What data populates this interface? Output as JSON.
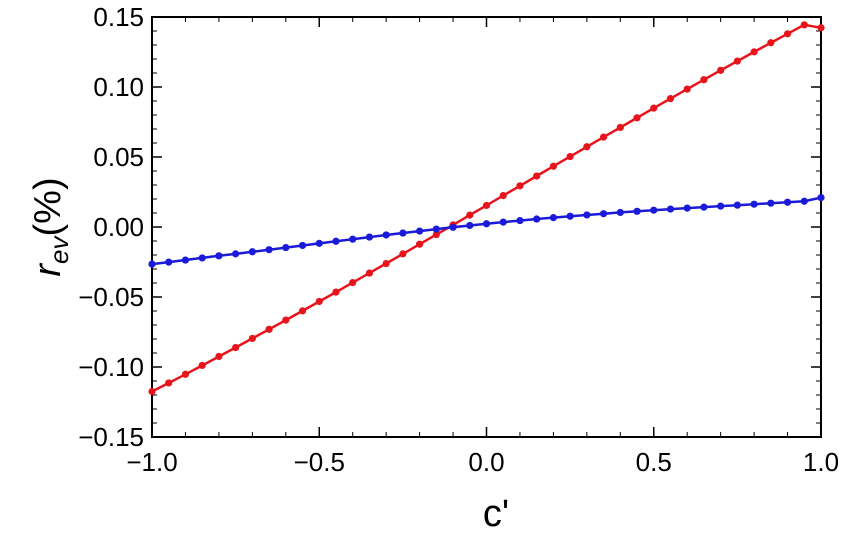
{
  "chart_data": {
    "type": "line",
    "title": "",
    "xlabel": "c'",
    "ylabel_main": "r",
    "ylabel_sub": "ev",
    "ylabel_suffix": "(%)",
    "xlim": [
      -1.0,
      1.0
    ],
    "ylim": [
      -0.15,
      0.15
    ],
    "grid": false,
    "legend": "none",
    "x_ticks": [
      {
        "value": -1.0,
        "label": "−1.0"
      },
      {
        "value": -0.5,
        "label": "−0.5"
      },
      {
        "value": 0.0,
        "label": "0.0"
      },
      {
        "value": 0.5,
        "label": "0.5"
      },
      {
        "value": 1.0,
        "label": "1.0"
      }
    ],
    "y_ticks": [
      {
        "value": 0.15,
        "label": "0.15"
      },
      {
        "value": 0.1,
        "label": "0.10"
      },
      {
        "value": 0.05,
        "label": "0.05"
      },
      {
        "value": 0.0,
        "label": "0.00"
      },
      {
        "value": -0.05,
        "label": "−0.05"
      },
      {
        "value": -0.1,
        "label": "−0.10"
      },
      {
        "value": -0.15,
        "label": "−0.15"
      }
    ],
    "x": [
      -1.0,
      -0.95,
      -0.9,
      -0.85,
      -0.8,
      -0.75,
      -0.7,
      -0.65,
      -0.6,
      -0.55,
      -0.5,
      -0.45,
      -0.4,
      -0.35,
      -0.3,
      -0.25,
      -0.2,
      -0.15,
      -0.1,
      -0.05,
      0.0,
      0.05,
      0.1,
      0.15,
      0.2,
      0.25,
      0.3,
      0.35,
      0.4,
      0.45,
      0.5,
      0.55,
      0.6,
      0.65,
      0.7,
      0.75,
      0.8,
      0.85,
      0.9,
      0.95,
      1.0
    ],
    "series": [
      {
        "color": "#e8141c",
        "values": [
          -0.1175,
          -0.1114,
          -0.1052,
          -0.0989,
          -0.0925,
          -0.0861,
          -0.0796,
          -0.0731,
          -0.0665,
          -0.0599,
          -0.0532,
          -0.0465,
          -0.0397,
          -0.0329,
          -0.0261,
          -0.0192,
          -0.0123,
          -0.0054,
          0.0015,
          0.0085,
          0.0154,
          0.0224,
          0.0294,
          0.0364,
          0.0434,
          0.0503,
          0.0573,
          0.0642,
          0.0711,
          0.078,
          0.0849,
          0.0917,
          0.0985,
          0.1052,
          0.1119,
          0.1185,
          0.1251,
          0.1316,
          0.138,
          0.1444,
          0.1423
        ]
      },
      {
        "color": "#1a1ad8",
        "values": [
          -0.0265,
          -0.0251,
          -0.0236,
          -0.0221,
          -0.0206,
          -0.0192,
          -0.0177,
          -0.0162,
          -0.0147,
          -0.0132,
          -0.0117,
          -0.0102,
          -0.0087,
          -0.0072,
          -0.0057,
          -0.0043,
          -0.0029,
          -0.0015,
          -0.0002,
          0.0011,
          0.0023,
          0.0035,
          0.0046,
          0.0057,
          0.0067,
          0.0077,
          0.0086,
          0.0095,
          0.0104,
          0.0112,
          0.012,
          0.0128,
          0.0135,
          0.0142,
          0.0149,
          0.0156,
          0.0163,
          0.017,
          0.0177,
          0.0184,
          0.021
        ]
      }
    ]
  }
}
